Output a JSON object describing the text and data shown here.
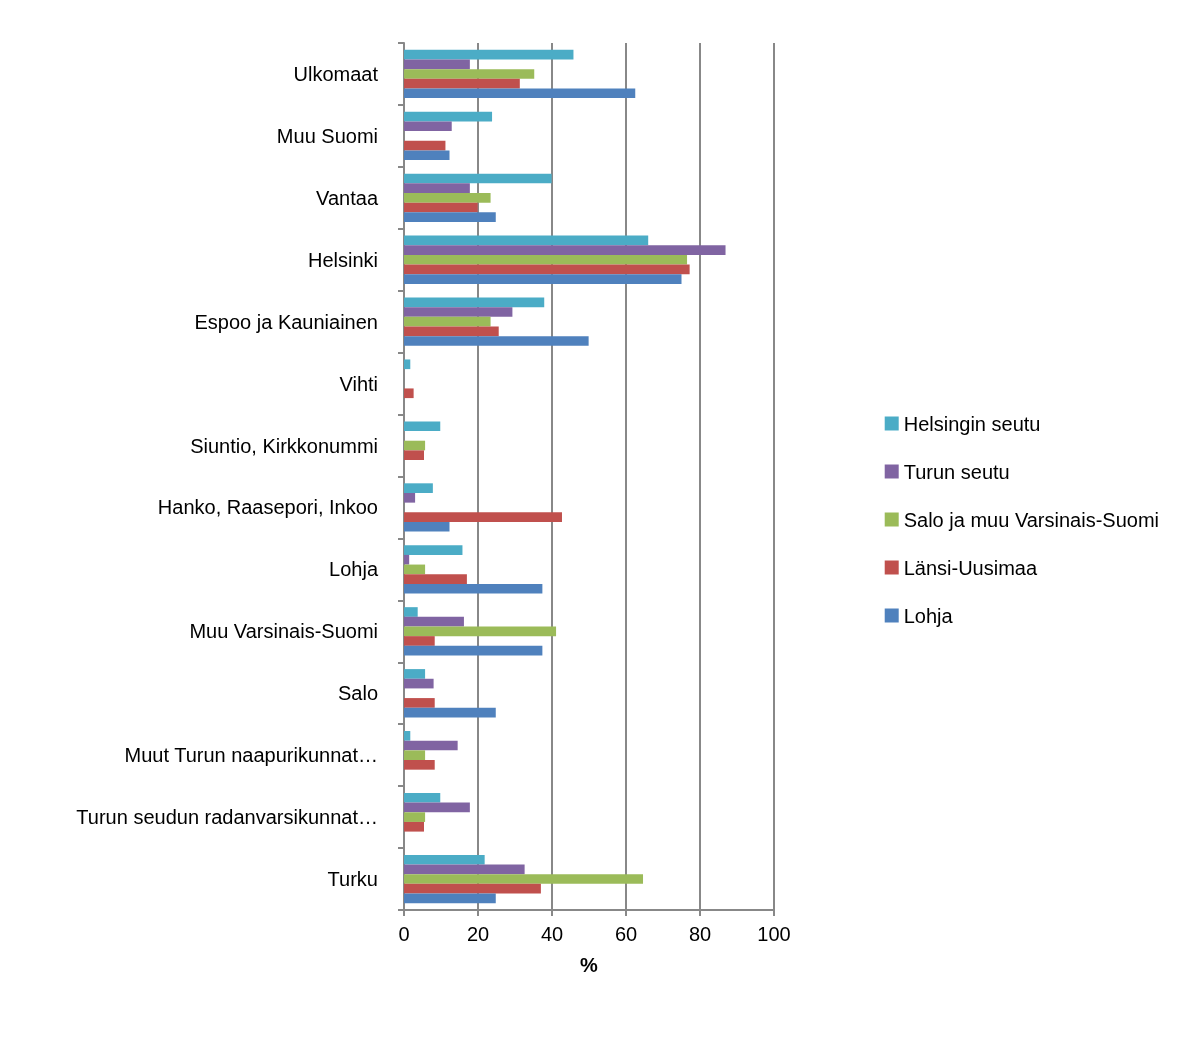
{
  "chart_data": {
    "type": "bar",
    "orientation": "horizontal",
    "xlabel": "%",
    "categories": [
      "Ulkomaat",
      "Muu Suomi",
      "Vantaa",
      "Helsinki",
      "Espoo ja Kauniainen",
      "Vihti",
      "Siuntio, Kirkkonummi",
      "Hanko, Raasepori, Inkoo",
      "Lohja",
      "Muu Varsinais-Suomi",
      "Salo",
      "Muut Turun naapurikunnat…",
      "Turun seudun radanvarsikunnat…",
      "Turku"
    ],
    "series": [
      {
        "name": "Helsingin seutu",
        "color": "#4bacc6",
        "values": [
          45.8,
          23.8,
          39.9,
          66.0,
          37.9,
          1.7,
          9.8,
          7.8,
          15.8,
          3.7,
          5.7,
          1.7,
          9.8,
          21.8
        ]
      },
      {
        "name": "Turun seutu",
        "color": "#8064a2",
        "values": [
          17.8,
          12.9,
          17.8,
          86.9,
          29.3,
          null,
          null,
          3.0,
          1.4,
          16.2,
          8.0,
          14.5,
          17.8,
          32.6
        ]
      },
      {
        "name": "Salo ja muu Varsinais-Suomi",
        "color": "#9bbb59",
        "values": [
          35.2,
          null,
          23.4,
          76.5,
          23.4,
          null,
          5.7,
          null,
          5.7,
          41.1,
          null,
          5.7,
          5.7,
          64.6
        ]
      },
      {
        "name": "Länsi-Uusimaa",
        "color": "#c0504d",
        "values": [
          31.3,
          11.2,
          19.9,
          77.2,
          25.6,
          2.6,
          5.4,
          42.7,
          17.0,
          8.3,
          8.3,
          8.3,
          5.4,
          37.0
        ]
      },
      {
        "name": "Lohja",
        "color": "#4f81bd",
        "values": [
          62.5,
          12.3,
          24.8,
          75.0,
          49.9,
          null,
          null,
          12.3,
          37.4,
          37.4,
          24.8,
          null,
          null,
          24.8
        ]
      }
    ],
    "xlim": [
      0,
      100
    ],
    "xticks": [
      0,
      20,
      40,
      60,
      80,
      100
    ],
    "grid": "x",
    "legend": "right"
  }
}
